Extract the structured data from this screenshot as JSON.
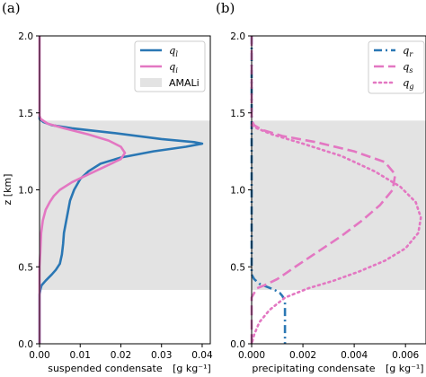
{
  "chart_data": [
    {
      "type": "line",
      "panel_label": "(a)",
      "xlabel": "suspended condensate",
      "xlabel_units": "[g kg⁻¹]",
      "ylabel": "z  [km]",
      "xlim": [
        0,
        0.042
      ],
      "ylim": [
        0,
        2.0
      ],
      "xticks": [
        0.0,
        0.01,
        0.02,
        0.03,
        0.04
      ],
      "xtick_labels": [
        "0.00",
        "0.01",
        "0.02",
        "0.03",
        "0.04"
      ],
      "yticks": [
        0.0,
        0.5,
        1.0,
        1.5,
        2.0
      ],
      "ytick_labels": [
        "0.0",
        "0.5",
        "1.0",
        "1.5",
        "2.0"
      ],
      "legend_position": "upper right",
      "shaded_band": {
        "name": "AMALi",
        "y_range": [
          0.35,
          1.45
        ],
        "color": "#e3e3e3"
      },
      "series": [
        {
          "name": "q_l",
          "label_main": "q",
          "label_sub": "l",
          "color": "#2a77b4",
          "style": "solid",
          "points": [
            [
              0,
              1.48
            ],
            [
              0.0,
              1.46
            ],
            [
              0.001,
              1.44
            ],
            [
              0.003,
              1.42
            ],
            [
              0.008,
              1.4
            ],
            [
              0.018,
              1.37
            ],
            [
              0.03,
              1.33
            ],
            [
              0.038,
              1.31
            ],
            [
              0.04,
              1.3
            ],
            [
              0.036,
              1.28
            ],
            [
              0.028,
              1.25
            ],
            [
              0.02,
              1.21
            ],
            [
              0.015,
              1.17
            ],
            [
              0.012,
              1.12
            ],
            [
              0.01,
              1.07
            ],
            [
              0.0085,
              1.0
            ],
            [
              0.0075,
              0.93
            ],
            [
              0.007,
              0.86
            ],
            [
              0.0065,
              0.79
            ],
            [
              0.006,
              0.72
            ],
            [
              0.0058,
              0.65
            ],
            [
              0.0055,
              0.58
            ],
            [
              0.005,
              0.52
            ],
            [
              0.004,
              0.48
            ],
            [
              0.003,
              0.45
            ],
            [
              0.0015,
              0.41
            ],
            [
              0.0005,
              0.38
            ],
            [
              0.0002,
              0.35
            ],
            [
              0,
              0.32
            ],
            [
              0,
              0.0
            ]
          ]
        },
        {
          "name": "q_i",
          "label_main": "q",
          "label_sub": "i",
          "color": "#e377c2",
          "style": "solid",
          "points": [
            [
              0,
              2.0
            ],
            [
              0,
              1.48
            ],
            [
              0.0003,
              1.46
            ],
            [
              0.002,
              1.43
            ],
            [
              0.006,
              1.4
            ],
            [
              0.012,
              1.36
            ],
            [
              0.017,
              1.32
            ],
            [
              0.02,
              1.28
            ],
            [
              0.021,
              1.24
            ],
            [
              0.02,
              1.2
            ],
            [
              0.016,
              1.15
            ],
            [
              0.012,
              1.1
            ],
            [
              0.008,
              1.05
            ],
            [
              0.005,
              1.0
            ],
            [
              0.0035,
              0.96
            ],
            [
              0.0025,
              0.92
            ],
            [
              0.0015,
              0.87
            ],
            [
              0.0008,
              0.8
            ],
            [
              0.0004,
              0.72
            ],
            [
              0.0002,
              0.6
            ],
            [
              0,
              0.5
            ],
            [
              0,
              0.0
            ]
          ]
        }
      ]
    },
    {
      "type": "line",
      "panel_label": "(b)",
      "xlabel": "precipitating condensate",
      "xlabel_units": "[g kg⁻¹]",
      "xlim": [
        0,
        0.0068
      ],
      "ylim": [
        0,
        2.0
      ],
      "xticks": [
        0.0,
        0.002,
        0.004,
        0.006
      ],
      "xtick_labels": [
        "0.000",
        "0.002",
        "0.004",
        "0.006"
      ],
      "yticks": [
        0.0,
        0.5,
        1.0,
        1.5,
        2.0
      ],
      "ytick_labels": [
        "0.0",
        "0.5",
        "1.0",
        "1.5",
        "2.0"
      ],
      "legend_position": "upper right",
      "shaded_band": {
        "y_range": [
          0.35,
          1.45
        ],
        "color": "#e3e3e3"
      },
      "series": [
        {
          "name": "q_r",
          "label_main": "q",
          "label_sub": "r",
          "color": "#2a77b4",
          "style": "dashdot",
          "points": [
            [
              0,
              2.0
            ],
            [
              0,
              0.45
            ],
            [
              0.0001,
              0.42
            ],
            [
              0.0003,
              0.39
            ],
            [
              0.0006,
              0.37
            ],
            [
              0.0009,
              0.35
            ],
            [
              0.0011,
              0.33
            ],
            [
              0.0012,
              0.31
            ],
            [
              0.0013,
              0.28
            ],
            [
              0.0013,
              0.2
            ],
            [
              0.0013,
              0.0
            ]
          ]
        },
        {
          "name": "q_s",
          "label_main": "q",
          "label_sub": "s",
          "color": "#e377c2",
          "style": "dashed",
          "points": [
            [
              0,
              2.0
            ],
            [
              0,
              1.45
            ],
            [
              0.0001,
              1.42
            ],
            [
              0.0004,
              1.39
            ],
            [
              0.0012,
              1.35
            ],
            [
              0.0025,
              1.31
            ],
            [
              0.004,
              1.25
            ],
            [
              0.0052,
              1.18
            ],
            [
              0.0056,
              1.1
            ],
            [
              0.0055,
              1.0
            ],
            [
              0.005,
              0.9
            ],
            [
              0.0043,
              0.8
            ],
            [
              0.0035,
              0.7
            ],
            [
              0.0026,
              0.6
            ],
            [
              0.0017,
              0.5
            ],
            [
              0.001,
              0.42
            ],
            [
              0.0005,
              0.38
            ],
            [
              0.0002,
              0.36
            ],
            [
              0.0001,
              0.33
            ],
            [
              0,
              0.3
            ],
            [
              0,
              0.0
            ]
          ]
        },
        {
          "name": "q_g",
          "label_main": "q",
          "label_sub": "g",
          "color": "#e377c2",
          "style": "dotted",
          "points": [
            [
              0,
              1.42
            ],
            [
              0.0002,
              1.4
            ],
            [
              0.0008,
              1.36
            ],
            [
              0.002,
              1.3
            ],
            [
              0.0035,
              1.22
            ],
            [
              0.0048,
              1.12
            ],
            [
              0.0058,
              1.02
            ],
            [
              0.0064,
              0.92
            ],
            [
              0.0066,
              0.82
            ],
            [
              0.0065,
              0.72
            ],
            [
              0.006,
              0.62
            ],
            [
              0.0052,
              0.54
            ],
            [
              0.0042,
              0.47
            ],
            [
              0.0032,
              0.41
            ],
            [
              0.0022,
              0.36
            ],
            [
              0.0013,
              0.3
            ],
            [
              0.0007,
              0.22
            ],
            [
              0.0003,
              0.14
            ],
            [
              0.0001,
              0.06
            ],
            [
              0,
              0.0
            ]
          ]
        }
      ]
    }
  ]
}
